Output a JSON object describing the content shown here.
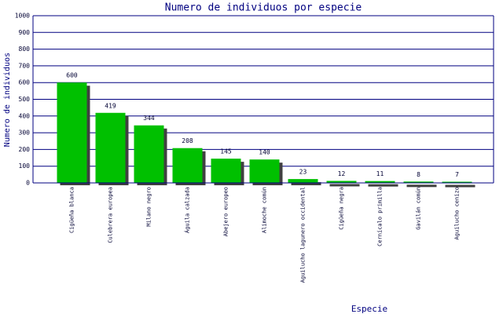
{
  "chart_data": {
    "type": "bar",
    "title": "Numero de individuos por especie",
    "x_label": "Especie",
    "y_label": "Numero de individuos",
    "categories": [
      "Cigüeña blanca",
      "Culebrera europea",
      "Milano negro",
      "Águila calzada",
      "Abejero europeo",
      "Alimoche común",
      "Aguilucho lagunero occidental",
      "Cigüeña negra",
      "Cernícalo primilla",
      "Gavilán común",
      "Aguilucho cenizo"
    ],
    "values": [
      600,
      419,
      344,
      208,
      145,
      140,
      23,
      12,
      11,
      8,
      7
    ],
    "color": "#00c000",
    "ylim": [
      0,
      1000
    ],
    "yticks": [
      0,
      100,
      200,
      300,
      400,
      500,
      600,
      700,
      800,
      900,
      1000
    ],
    "grid": true
  }
}
